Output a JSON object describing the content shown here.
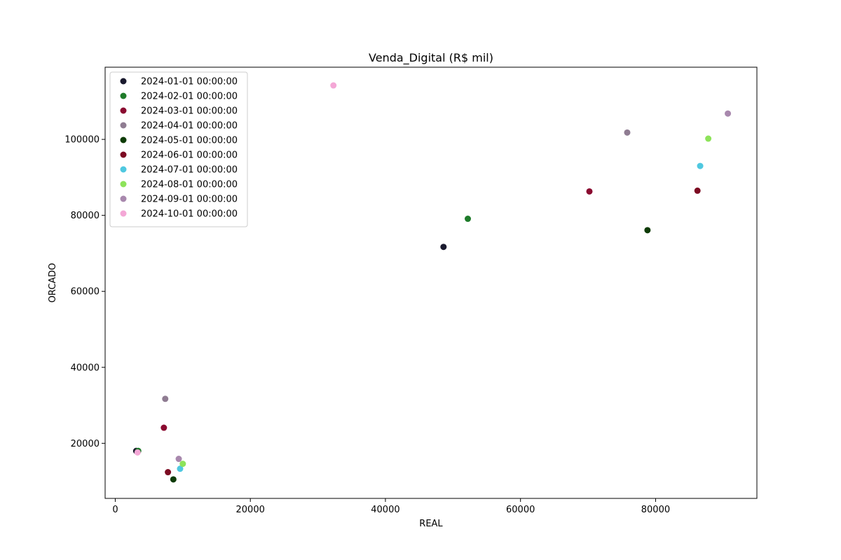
{
  "chart_data": {
    "type": "scatter",
    "title": "Venda_Digital (R$ mil)",
    "xlabel": "REAL",
    "ylabel": "ORCADO",
    "xlim": [
      -1500,
      95000
    ],
    "ylim": [
      5500,
      119000
    ],
    "xticks": [
      0,
      20000,
      40000,
      60000,
      80000
    ],
    "yticks": [
      20000,
      40000,
      60000,
      80000,
      100000
    ],
    "grid": false,
    "legend_position": "upper-left",
    "series": [
      {
        "name": "2024-01-01 00:00:00",
        "color": "#1a1a2e",
        "points": [
          [
            48600,
            71700
          ],
          [
            3100,
            18000
          ]
        ]
      },
      {
        "name": "2024-02-01 00:00:00",
        "color": "#1e7b2a",
        "points": [
          [
            52200,
            79100
          ],
          [
            3400,
            18000
          ]
        ]
      },
      {
        "name": "2024-03-01 00:00:00",
        "color": "#8a0a30",
        "points": [
          [
            70200,
            86300
          ],
          [
            7200,
            24100
          ]
        ]
      },
      {
        "name": "2024-04-01 00:00:00",
        "color": "#8f7c92",
        "points": [
          [
            75800,
            101800
          ],
          [
            7400,
            31700
          ]
        ]
      },
      {
        "name": "2024-05-01 00:00:00",
        "color": "#0e3b06",
        "points": [
          [
            78800,
            76100
          ],
          [
            8600,
            10500
          ]
        ]
      },
      {
        "name": "2024-06-01 00:00:00",
        "color": "#7c0a22",
        "points": [
          [
            86200,
            86500
          ],
          [
            7800,
            12400
          ]
        ]
      },
      {
        "name": "2024-07-01 00:00:00",
        "color": "#4fc8e0",
        "points": [
          [
            86600,
            93000
          ],
          [
            9600,
            13300
          ]
        ]
      },
      {
        "name": "2024-08-01 00:00:00",
        "color": "#8de35a",
        "points": [
          [
            87800,
            100200
          ],
          [
            10000,
            14600
          ]
        ]
      },
      {
        "name": "2024-09-01 00:00:00",
        "color": "#a888ad",
        "points": [
          [
            90700,
            106800
          ],
          [
            9400,
            15900
          ]
        ]
      },
      {
        "name": "2024-10-01 00:00:00",
        "color": "#f4a7d6",
        "points": [
          [
            32300,
            114200
          ],
          [
            3300,
            17600
          ]
        ]
      }
    ]
  }
}
